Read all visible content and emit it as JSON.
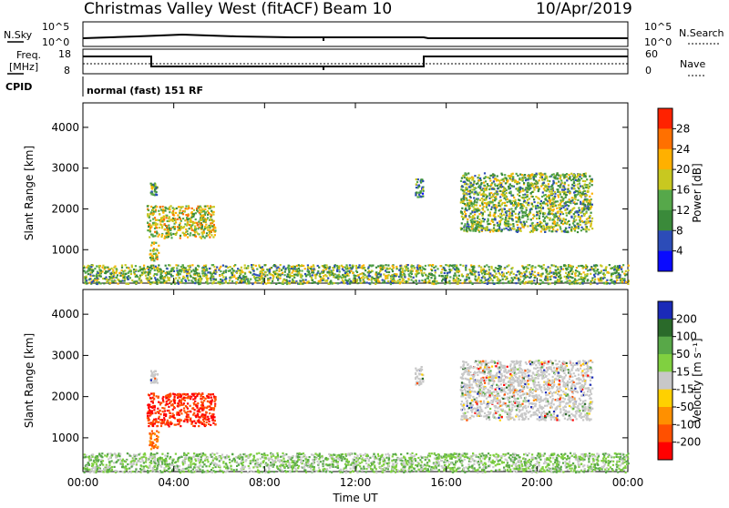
{
  "header": {
    "station": "Christmas Valley West (fitACF)",
    "beam": "Beam 10",
    "date": "10/Apr/2019"
  },
  "info_panels": {
    "nsky_label": "N.Sky",
    "nsky_ticks": [
      "10^5",
      "10^0"
    ],
    "nsearch_label": "N.Search",
    "freq_label_1": "Freq.",
    "freq_label_2": "[MHz]",
    "freq_ticks": [
      "18",
      "8"
    ],
    "nave_label": "Nave",
    "nave_ticks": [
      "60",
      "0"
    ],
    "cpid_label": "CPID",
    "cpid_text": "normal (fast) 151 RF"
  },
  "chart_data": [
    {
      "type": "heatmap",
      "name": "power",
      "ylabel": "Slant Range [km]",
      "xlabel": "",
      "x_ticks": [
        "00:00",
        "04:00",
        "08:00",
        "12:00",
        "16:00",
        "20:00",
        "00:00"
      ],
      "y_ticks": [
        "1000",
        "2000",
        "3000",
        "4000"
      ],
      "ylim": [
        180,
        4600
      ],
      "xlim_hours": [
        0,
        24
      ],
      "colorbar_label": "Power [dB]",
      "colorbar_ticks": [
        "4",
        "8",
        "12",
        "16",
        "20",
        "24",
        "28"
      ],
      "colorbar_range": [
        0,
        32
      ],
      "colorbar_colors": [
        "#0a0aff",
        "#2c4cb8",
        "#3a8a3a",
        "#56a84a",
        "#c8c820",
        "#ffb000",
        "#ff7000",
        "#ff2200"
      ],
      "regions": [
        {
          "x": [
            2.8,
            5.8
          ],
          "y": [
            1300,
            2100
          ],
          "value": 20
        },
        {
          "x": [
            2.9,
            3.3
          ],
          "y": [
            750,
            1200
          ],
          "value": 16
        },
        {
          "x": [
            2.95,
            3.25
          ],
          "y": [
            2350,
            2650
          ],
          "value": 12
        },
        {
          "x": [
            14.6,
            14.95
          ],
          "y": [
            2300,
            2750
          ],
          "value": 10
        },
        {
          "x": [
            16.6,
            22.4
          ],
          "y": [
            1450,
            2900
          ],
          "value": 14
        },
        {
          "x": [
            0,
            24
          ],
          "y": [
            180,
            650
          ],
          "value": 12
        }
      ]
    },
    {
      "type": "heatmap",
      "name": "velocity",
      "ylabel": "Slant Range [km]",
      "xlabel": "Time UT",
      "x_ticks": [
        "00:00",
        "04:00",
        "08:00",
        "12:00",
        "16:00",
        "20:00",
        "00:00"
      ],
      "y_ticks": [
        "1000",
        "2000",
        "3000",
        "4000"
      ],
      "ylim": [
        180,
        4600
      ],
      "xlim_hours": [
        0,
        24
      ],
      "colorbar_label": "Velocity [m s⁻¹]",
      "colorbar_ticks": [
        "200",
        "100",
        "50",
        "15",
        "-15",
        "-50",
        "-100",
        "-200"
      ],
      "colorbar_colors": [
        "#1a2ab8",
        "#2a6a2a",
        "#58a848",
        "#80d040",
        "#c8c8c8",
        "#ffd000",
        "#ff9000",
        "#ff5000",
        "#ff0000"
      ],
      "regions": [
        {
          "x": [
            2.8,
            5.8
          ],
          "y": [
            1300,
            2100
          ],
          "value": -200
        },
        {
          "x": [
            2.9,
            3.3
          ],
          "y": [
            750,
            1200
          ],
          "value": -100
        },
        {
          "x": [
            2.95,
            3.25
          ],
          "y": [
            2350,
            2650
          ],
          "value": 0
        },
        {
          "x": [
            14.6,
            14.95
          ],
          "y": [
            2300,
            2750
          ],
          "value": 0
        },
        {
          "x": [
            16.6,
            22.4
          ],
          "y": [
            1450,
            2900
          ],
          "value": 0
        },
        {
          "x": [
            0,
            24
          ],
          "y": [
            180,
            650
          ],
          "value": 40
        }
      ]
    }
  ]
}
